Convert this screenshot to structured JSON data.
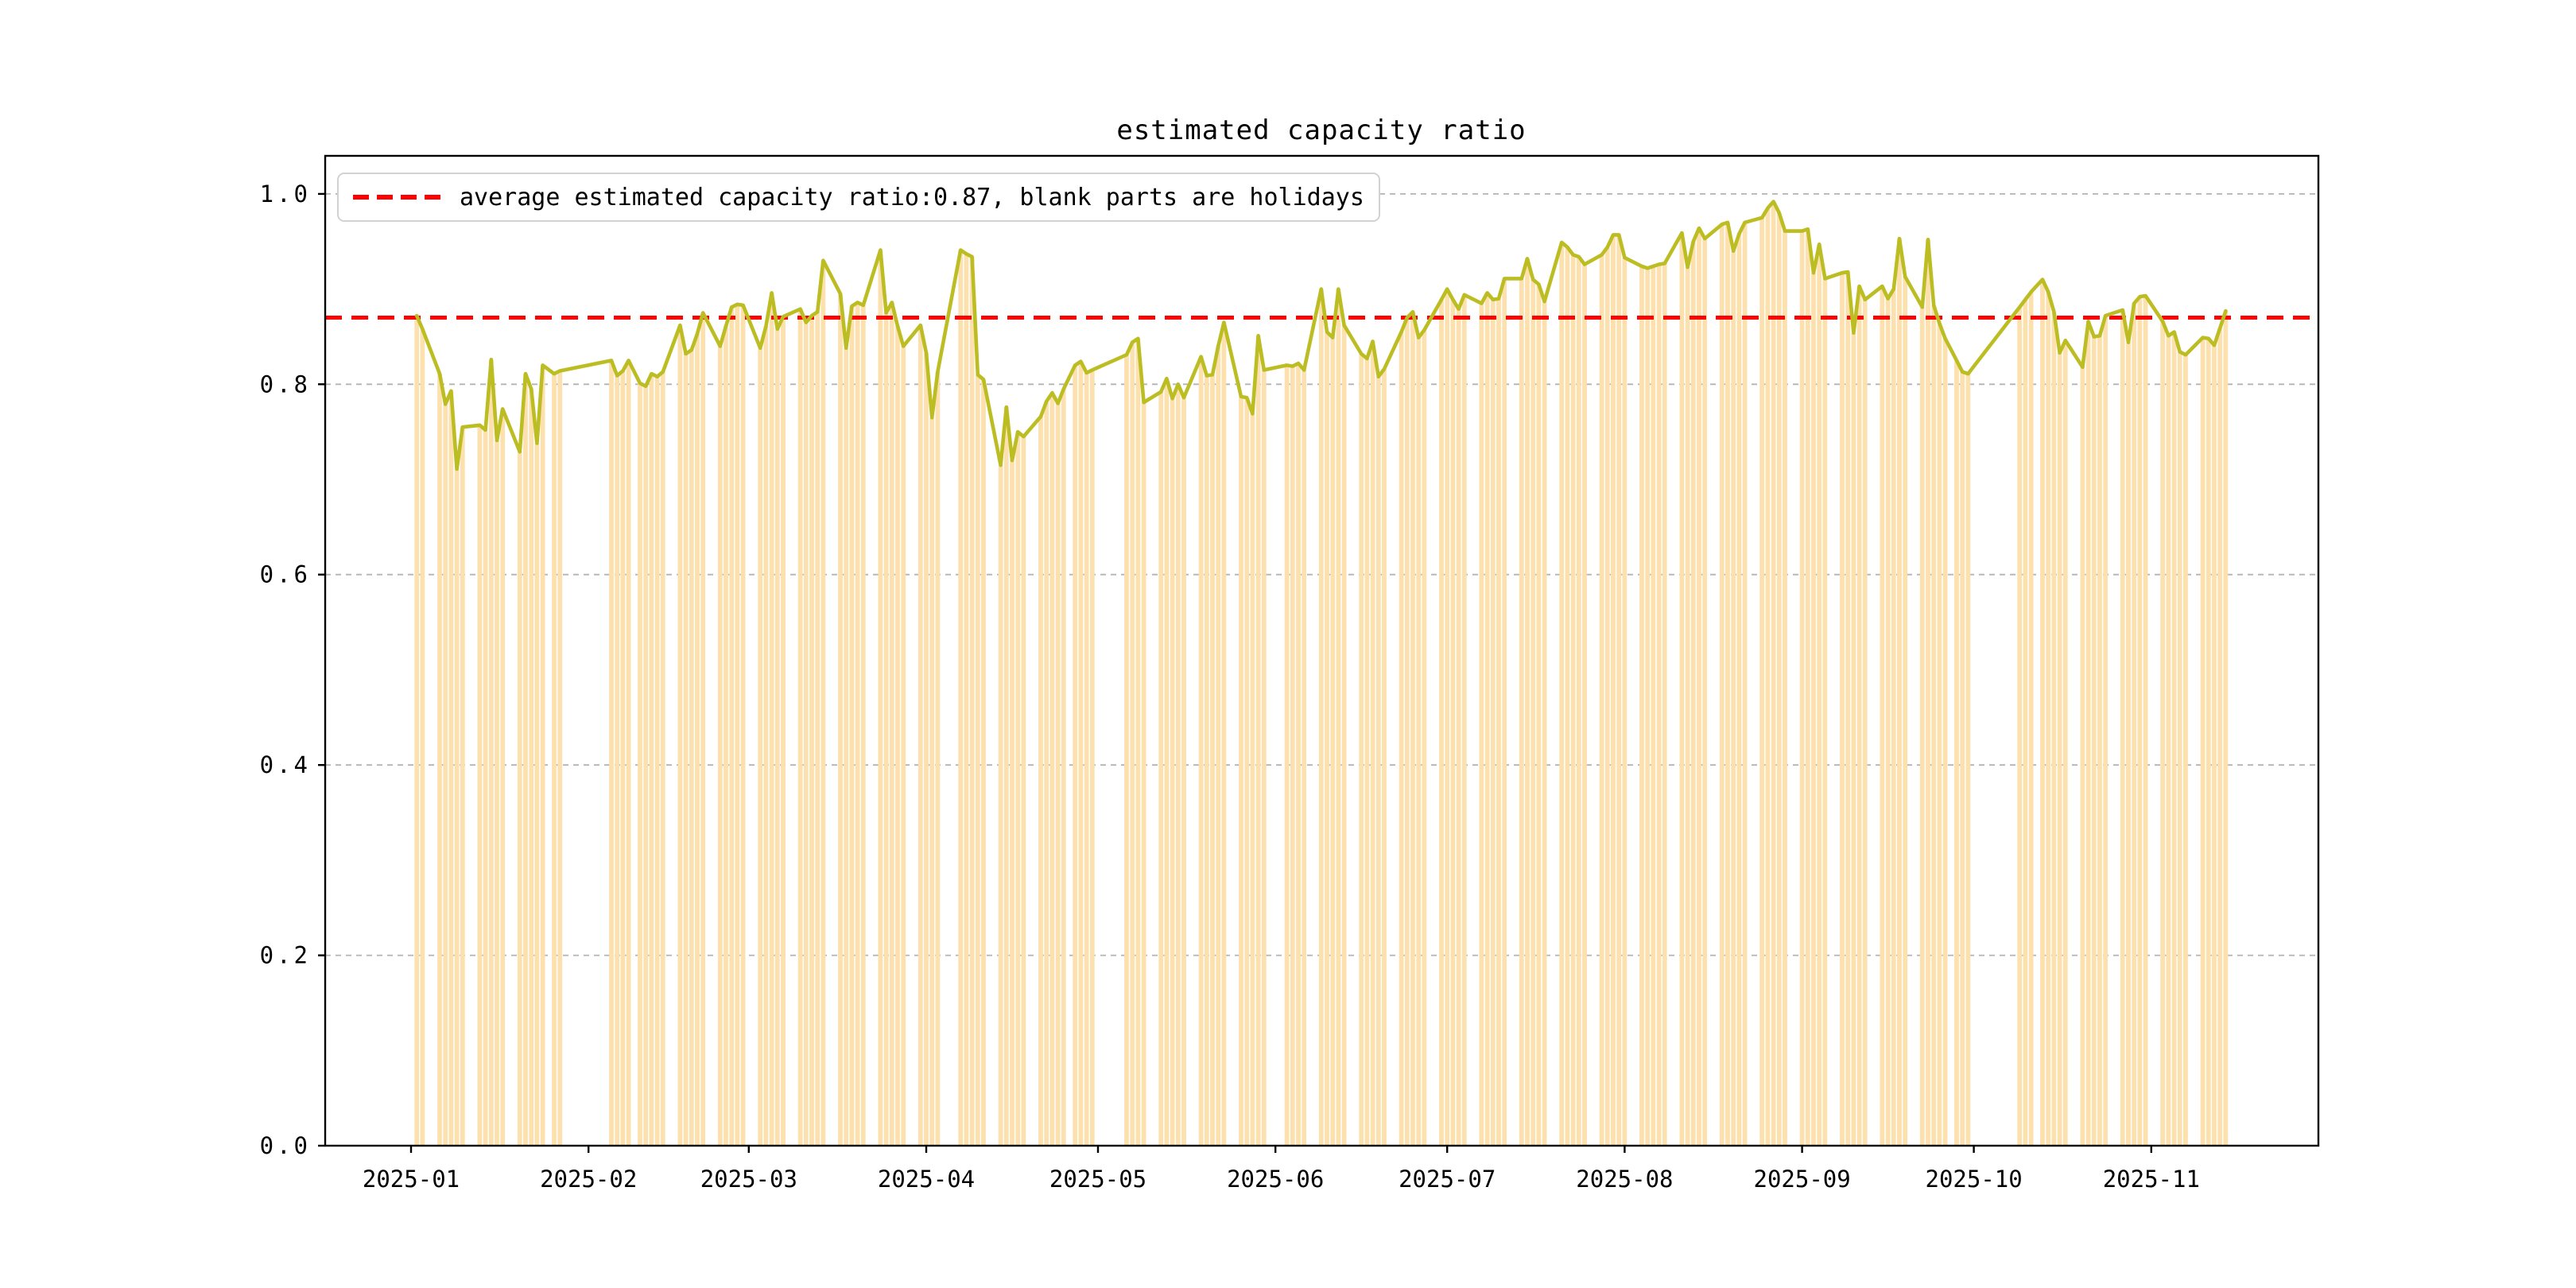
{
  "figure": {
    "title": "estimated capacity ratio",
    "background_color": "#ffffff"
  },
  "legend": {
    "label": "average estimated capacity ratio:0.87, blank parts are holidays",
    "sample_color": "#ff0000",
    "sample_style": "dashed"
  },
  "chart_data": {
    "type": "bar",
    "title": "estimated capacity ratio",
    "xlabel": "",
    "ylabel": "",
    "grid": true,
    "legend_position": "upper left",
    "ylim": [
      0.0,
      1.04
    ],
    "xlim_days_from_jan1": [
      -15.0,
      333.2
    ],
    "y_ticks": [
      "0.0",
      "0.2",
      "0.4",
      "0.6",
      "0.8",
      "1.0"
    ],
    "y_tick_values": [
      0.0,
      0.2,
      0.4,
      0.6,
      0.8,
      1.0
    ],
    "x_ticks": [
      {
        "label": "2025-01",
        "date": "2025-01-01"
      },
      {
        "label": "2025-02",
        "date": "2025-02-01"
      },
      {
        "label": "2025-03",
        "date": "2025-03-01"
      },
      {
        "label": "2025-04",
        "date": "2025-04-01"
      },
      {
        "label": "2025-05",
        "date": "2025-05-01"
      },
      {
        "label": "2025-06",
        "date": "2025-06-01"
      },
      {
        "label": "2025-07",
        "date": "2025-07-01"
      },
      {
        "label": "2025-08",
        "date": "2025-08-01"
      },
      {
        "label": "2025-09",
        "date": "2025-09-01"
      },
      {
        "label": "2025-10",
        "date": "2025-10-01"
      },
      {
        "label": "2025-11",
        "date": "2025-11-01"
      }
    ],
    "average_line": {
      "value": 0.87,
      "color": "#ff0000",
      "style": "dashed"
    },
    "colors": {
      "bar_fill": "#fce0ad",
      "line": "#bcbd22",
      "grid": "#b3b3b3",
      "average": "#ff0000",
      "spine": "#000000"
    },
    "note": "blank parts are holidays",
    "series": {
      "name": "estimated capacity ratio",
      "dates": [
        "2025-01-02",
        "2025-01-03",
        "2025-01-06",
        "2025-01-07",
        "2025-01-08",
        "2025-01-09",
        "2025-01-10",
        "2025-01-13",
        "2025-01-14",
        "2025-01-15",
        "2025-01-16",
        "2025-01-17",
        "2025-01-20",
        "2025-01-21",
        "2025-01-22",
        "2025-01-23",
        "2025-01-24",
        "2025-01-26",
        "2025-01-27",
        "2025-02-05",
        "2025-02-06",
        "2025-02-07",
        "2025-02-08",
        "2025-02-10",
        "2025-02-11",
        "2025-02-12",
        "2025-02-13",
        "2025-02-14",
        "2025-02-17",
        "2025-02-18",
        "2025-02-19",
        "2025-02-20",
        "2025-02-21",
        "2025-02-24",
        "2025-02-25",
        "2025-02-26",
        "2025-02-27",
        "2025-02-28",
        "2025-03-03",
        "2025-03-04",
        "2025-03-05",
        "2025-03-06",
        "2025-03-07",
        "2025-03-10",
        "2025-03-11",
        "2025-03-12",
        "2025-03-13",
        "2025-03-14",
        "2025-03-17",
        "2025-03-18",
        "2025-03-19",
        "2025-03-20",
        "2025-03-21",
        "2025-03-24",
        "2025-03-25",
        "2025-03-26",
        "2025-03-27",
        "2025-03-28",
        "2025-03-31",
        "2025-04-01",
        "2025-04-02",
        "2025-04-03",
        "2025-04-07",
        "2025-04-08",
        "2025-04-09",
        "2025-04-10",
        "2025-04-11",
        "2025-04-14",
        "2025-04-15",
        "2025-04-16",
        "2025-04-17",
        "2025-04-18",
        "2025-04-21",
        "2025-04-22",
        "2025-04-23",
        "2025-04-24",
        "2025-04-25",
        "2025-04-27",
        "2025-04-28",
        "2025-04-29",
        "2025-04-30",
        "2025-05-06",
        "2025-05-07",
        "2025-05-08",
        "2025-05-09",
        "2025-05-12",
        "2025-05-13",
        "2025-05-14",
        "2025-05-15",
        "2025-05-16",
        "2025-05-19",
        "2025-05-20",
        "2025-05-21",
        "2025-05-22",
        "2025-05-23",
        "2025-05-26",
        "2025-05-27",
        "2025-05-28",
        "2025-05-29",
        "2025-05-30",
        "2025-06-03",
        "2025-06-04",
        "2025-06-05",
        "2025-06-06",
        "2025-06-09",
        "2025-06-10",
        "2025-06-11",
        "2025-06-12",
        "2025-06-13",
        "2025-06-16",
        "2025-06-17",
        "2025-06-18",
        "2025-06-19",
        "2025-06-20",
        "2025-06-23",
        "2025-06-24",
        "2025-06-25",
        "2025-06-26",
        "2025-06-27",
        "2025-06-30",
        "2025-07-01",
        "2025-07-02",
        "2025-07-03",
        "2025-07-04",
        "2025-07-07",
        "2025-07-08",
        "2025-07-09",
        "2025-07-10",
        "2025-07-11",
        "2025-07-14",
        "2025-07-15",
        "2025-07-16",
        "2025-07-17",
        "2025-07-18",
        "2025-07-21",
        "2025-07-22",
        "2025-07-23",
        "2025-07-24",
        "2025-07-25",
        "2025-07-28",
        "2025-07-29",
        "2025-07-30",
        "2025-07-31",
        "2025-08-01",
        "2025-08-04",
        "2025-08-05",
        "2025-08-06",
        "2025-08-07",
        "2025-08-08",
        "2025-08-11",
        "2025-08-12",
        "2025-08-13",
        "2025-08-14",
        "2025-08-15",
        "2025-08-18",
        "2025-08-19",
        "2025-08-20",
        "2025-08-21",
        "2025-08-22",
        "2025-08-25",
        "2025-08-26",
        "2025-08-27",
        "2025-08-28",
        "2025-08-29",
        "2025-09-01",
        "2025-09-02",
        "2025-09-03",
        "2025-09-04",
        "2025-09-05",
        "2025-09-08",
        "2025-09-09",
        "2025-09-10",
        "2025-09-11",
        "2025-09-12",
        "2025-09-15",
        "2025-09-16",
        "2025-09-17",
        "2025-09-18",
        "2025-09-19",
        "2025-09-22",
        "2025-09-23",
        "2025-09-24",
        "2025-09-25",
        "2025-09-26",
        "2025-09-28",
        "2025-09-29",
        "2025-09-30",
        "2025-10-09",
        "2025-10-10",
        "2025-10-11",
        "2025-10-13",
        "2025-10-14",
        "2025-10-15",
        "2025-10-16",
        "2025-10-17",
        "2025-10-20",
        "2025-10-21",
        "2025-10-22",
        "2025-10-23",
        "2025-10-24",
        "2025-10-27",
        "2025-10-28",
        "2025-10-29",
        "2025-10-30",
        "2025-10-31",
        "2025-11-03",
        "2025-11-04",
        "2025-11-05",
        "2025-11-06",
        "2025-11-07",
        "2025-11-10",
        "2025-11-11",
        "2025-11-12",
        "2025-11-13",
        "2025-11-14"
      ],
      "values": [
        0.872,
        0.858,
        0.811,
        0.779,
        0.793,
        0.711,
        0.755,
        0.757,
        0.752,
        0.826,
        0.741,
        0.774,
        0.729,
        0.811,
        0.795,
        0.738,
        0.82,
        0.811,
        0.814,
        0.825,
        0.809,
        0.814,
        0.825,
        0.801,
        0.798,
        0.811,
        0.808,
        0.813,
        0.862,
        0.832,
        0.836,
        0.853,
        0.875,
        0.84,
        0.861,
        0.881,
        0.884,
        0.883,
        0.838,
        0.861,
        0.896,
        0.858,
        0.871,
        0.879,
        0.865,
        0.872,
        0.876,
        0.93,
        0.895,
        0.838,
        0.882,
        0.886,
        0.883,
        0.941,
        0.875,
        0.886,
        0.861,
        0.84,
        0.862,
        0.833,
        0.765,
        0.813,
        0.941,
        0.937,
        0.934,
        0.81,
        0.805,
        0.715,
        0.776,
        0.72,
        0.75,
        0.745,
        0.766,
        0.782,
        0.791,
        0.78,
        0.795,
        0.82,
        0.824,
        0.812,
        0.815,
        0.831,
        0.844,
        0.848,
        0.781,
        0.792,
        0.806,
        0.785,
        0.8,
        0.786,
        0.829,
        0.809,
        0.81,
        0.84,
        0.865,
        0.787,
        0.786,
        0.769,
        0.851,
        0.815,
        0.82,
        0.819,
        0.822,
        0.815,
        0.9,
        0.855,
        0.849,
        0.9,
        0.862,
        0.832,
        0.827,
        0.845,
        0.808,
        0.816,
        0.855,
        0.87,
        0.876,
        0.849,
        0.857,
        0.889,
        0.9,
        0.889,
        0.879,
        0.894,
        0.885,
        0.896,
        0.889,
        0.89,
        0.911,
        0.911,
        0.932,
        0.91,
        0.905,
        0.887,
        0.949,
        0.944,
        0.936,
        0.934,
        0.926,
        0.936,
        0.944,
        0.957,
        0.957,
        0.933,
        0.924,
        0.922,
        0.924,
        0.926,
        0.927,
        0.959,
        0.923,
        0.95,
        0.964,
        0.953,
        0.968,
        0.97,
        0.94,
        0.958,
        0.97,
        0.975,
        0.985,
        0.992,
        0.98,
        0.961,
        0.961,
        0.963,
        0.917,
        0.947,
        0.911,
        0.917,
        0.918,
        0.854,
        0.903,
        0.889,
        0.903,
        0.89,
        0.9,
        0.953,
        0.913,
        0.881,
        0.952,
        0.883,
        0.864,
        0.848,
        0.825,
        0.813,
        0.811,
        0.881,
        0.889,
        0.897,
        0.91,
        0.897,
        0.876,
        0.833,
        0.846,
        0.818,
        0.866,
        0.85,
        0.851,
        0.872,
        0.878,
        0.844,
        0.885,
        0.892,
        0.893,
        0.866,
        0.851,
        0.855,
        0.834,
        0.831,
        0.849,
        0.848,
        0.841,
        0.859,
        0.877
      ]
    }
  }
}
